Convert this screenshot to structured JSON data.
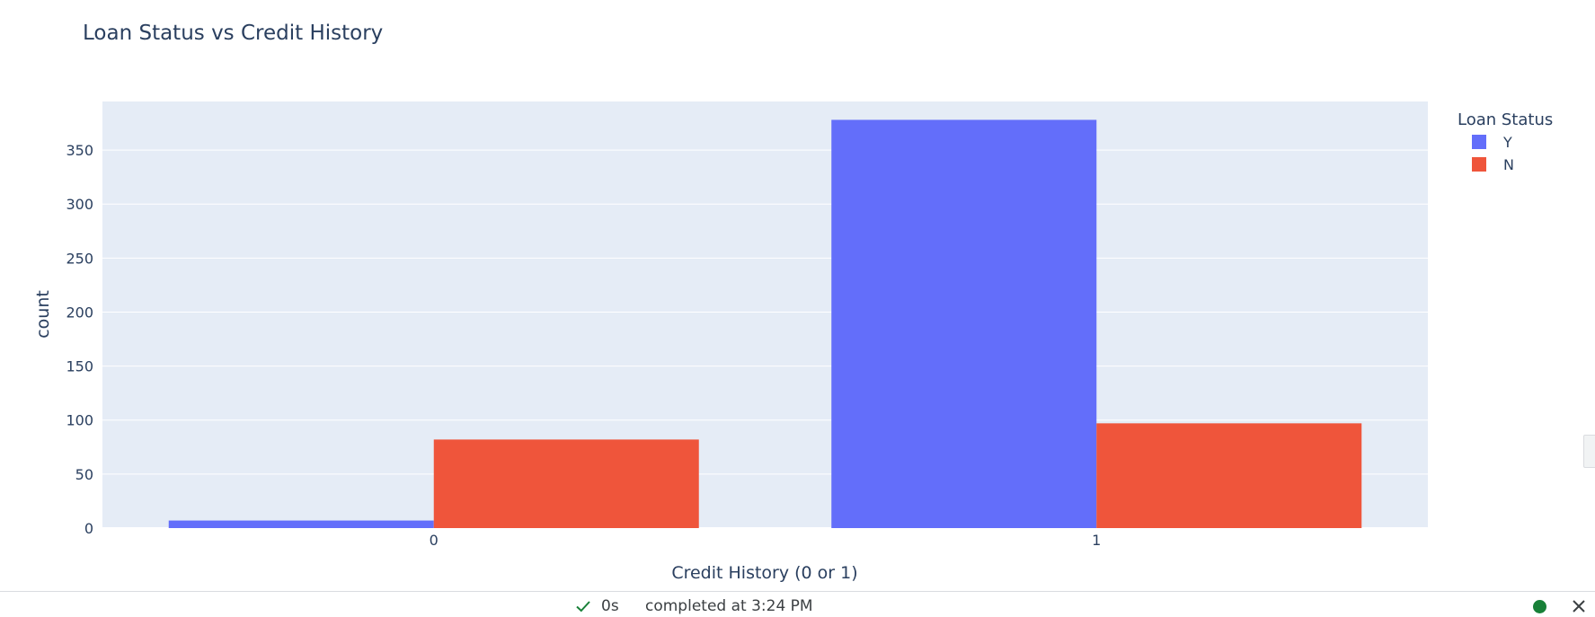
{
  "chart_data": {
    "type": "bar",
    "title": "Loan Status vs Credit History",
    "xlabel": "Credit History (0 or 1)",
    "ylabel": "count",
    "categories": [
      "0",
      "1"
    ],
    "series": [
      {
        "name": "Y",
        "values": [
          7,
          378
        ],
        "color": "#636efa"
      },
      {
        "name": "N",
        "values": [
          82,
          97
        ],
        "color": "#ef553b"
      }
    ],
    "ylim": [
      0,
      395
    ],
    "yticks": [
      0,
      50,
      100,
      150,
      200,
      250,
      300,
      350
    ],
    "legend_title": "Loan Status",
    "legend_position": "top-right",
    "grid": true,
    "plot_bg": "#e5ecf6"
  },
  "status_bar": {
    "duration": "0s",
    "completed_text": "completed at 3:24 PM",
    "check_icon": "check-icon",
    "status_dot_color": "#188038",
    "close_icon": "close-icon"
  }
}
